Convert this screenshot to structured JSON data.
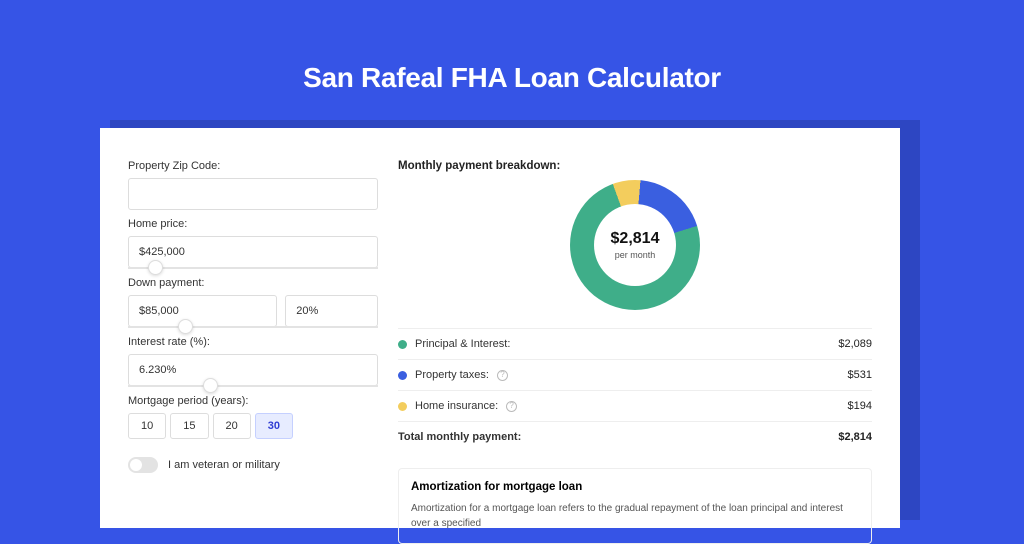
{
  "page": {
    "title": "San Rafeal FHA Loan Calculator",
    "background_color": "#3654e6",
    "card_background": "#ffffff"
  },
  "form": {
    "zip": {
      "label": "Property Zip Code:",
      "value": ""
    },
    "home_price": {
      "label": "Home price:",
      "value": "$425,000",
      "slider_pos_pct": 8
    },
    "down_payment": {
      "label": "Down payment:",
      "amount": "$85,000",
      "percent": "20%",
      "slider_pos_pct": 20
    },
    "interest_rate": {
      "label": "Interest rate (%):",
      "value": "6.230%",
      "slider_pos_pct": 30
    },
    "period": {
      "label": "Mortgage period (years):",
      "options": [
        "10",
        "15",
        "20",
        "30"
      ],
      "selected": "30"
    },
    "veteran": {
      "label": "I am veteran or military",
      "checked": false
    }
  },
  "breakdown": {
    "title": "Monthly payment breakdown:",
    "chart": {
      "type": "donut",
      "center_value": "$2,814",
      "center_sub": "per month",
      "slices": [
        {
          "label": "Principal & Interest:",
          "value": "$2,089",
          "pct": 74.2,
          "color": "#3fae89"
        },
        {
          "label": "Property taxes:",
          "value": "$531",
          "pct": 18.9,
          "color": "#3a5fe0",
          "info": true
        },
        {
          "label": "Home insurance:",
          "value": "$194",
          "pct": 6.9,
          "color": "#f3cd5d",
          "info": true
        }
      ],
      "ring_thickness": 24,
      "background": "#ffffff"
    },
    "total": {
      "label": "Total monthly payment:",
      "value": "$2,814"
    }
  },
  "amortization": {
    "title": "Amortization for mortgage loan",
    "text": "Amortization for a mortgage loan refers to the gradual repayment of the loan principal and interest over a specified"
  },
  "colors": {
    "slice_pi": "#3fae89",
    "slice_tax": "#3a5fe0",
    "slice_ins": "#f3cd5d",
    "divider": "#eeeeee",
    "text": "#333333"
  }
}
